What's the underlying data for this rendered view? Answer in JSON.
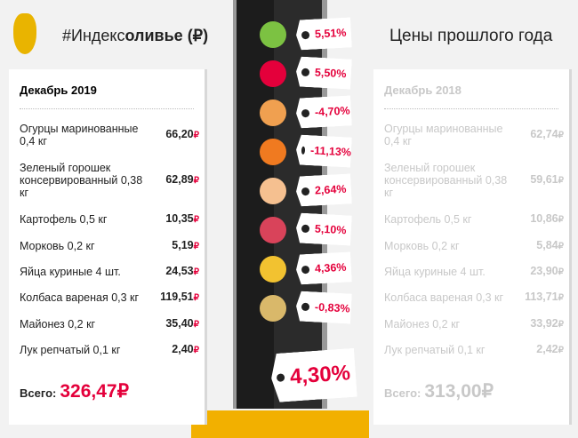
{
  "header": {
    "title_prefix": "#Индекс",
    "title_bold": "оливье",
    "title_suffix": " (₽)",
    "right_title": "Цены прошлого года"
  },
  "current": {
    "period": "Декабрь 2019",
    "items": [
      {
        "name": "Огурцы маринованные 0,4 кг",
        "price": "66,20"
      },
      {
        "name": "Зеленый горошек консервированный 0,38 кг",
        "price": "62,89"
      },
      {
        "name": "Картофель 0,5 кг",
        "price": "10,35"
      },
      {
        "name": "Морковь 0,2 кг",
        "price": "5,19"
      },
      {
        "name": "Яйца куриные 4 шт.",
        "price": "24,53"
      },
      {
        "name": "Колбаса вареная 0,3 кг",
        "price": "119,51"
      },
      {
        "name": "Майонез 0,2 кг",
        "price": "35,40"
      },
      {
        "name": "Лук репчатый 0,1 кг",
        "price": "2,40"
      }
    ],
    "total_label": "Всего:",
    "total": "326,47"
  },
  "previous": {
    "period": "Декабрь 2018",
    "items": [
      {
        "name": "Огурцы маринованные 0,4 кг",
        "price": "62,74"
      },
      {
        "name": "Зеленый горошек консервированный 0,38 кг",
        "price": "59,61"
      },
      {
        "name": "Картофель 0,5 кг",
        "price": "10,86"
      },
      {
        "name": "Морковь 0,2 кг",
        "price": "5,84"
      },
      {
        "name": "Яйца куриные 4 шт.",
        "price": "23,90"
      },
      {
        "name": "Колбаса вареная 0,3 кг",
        "price": "113,71"
      },
      {
        "name": "Майонез 0,2 кг",
        "price": "33,92"
      },
      {
        "name": "Лук репчатый 0,1 кг",
        "price": "2,42"
      }
    ],
    "total_label": "Всего:",
    "total": "313,00"
  },
  "currency": "₽",
  "changes": [
    {
      "icon": "cucumber-icon",
      "value": "5,51%",
      "color": "#7cc242"
    },
    {
      "icon": "peas-can-icon",
      "value": "5,50%",
      "color": "#e4003b"
    },
    {
      "icon": "potato-icon",
      "value": "-4,70%",
      "color": "#f0a050"
    },
    {
      "icon": "carrot-icon",
      "value": "-11,13%",
      "color": "#f07a20"
    },
    {
      "icon": "egg-icon",
      "value": "2,64%",
      "color": "#f5c090"
    },
    {
      "icon": "sausage-icon",
      "value": "5,10%",
      "color": "#d9435a"
    },
    {
      "icon": "mayonnaise-icon",
      "value": "4,36%",
      "color": "#f2c230"
    },
    {
      "icon": "onion-icon",
      "value": "-0,83%",
      "color": "#d9b86a"
    }
  ],
  "total_change": "4,30%",
  "colors": {
    "accent": "#e4003b",
    "muted": "#c8c8c8"
  }
}
